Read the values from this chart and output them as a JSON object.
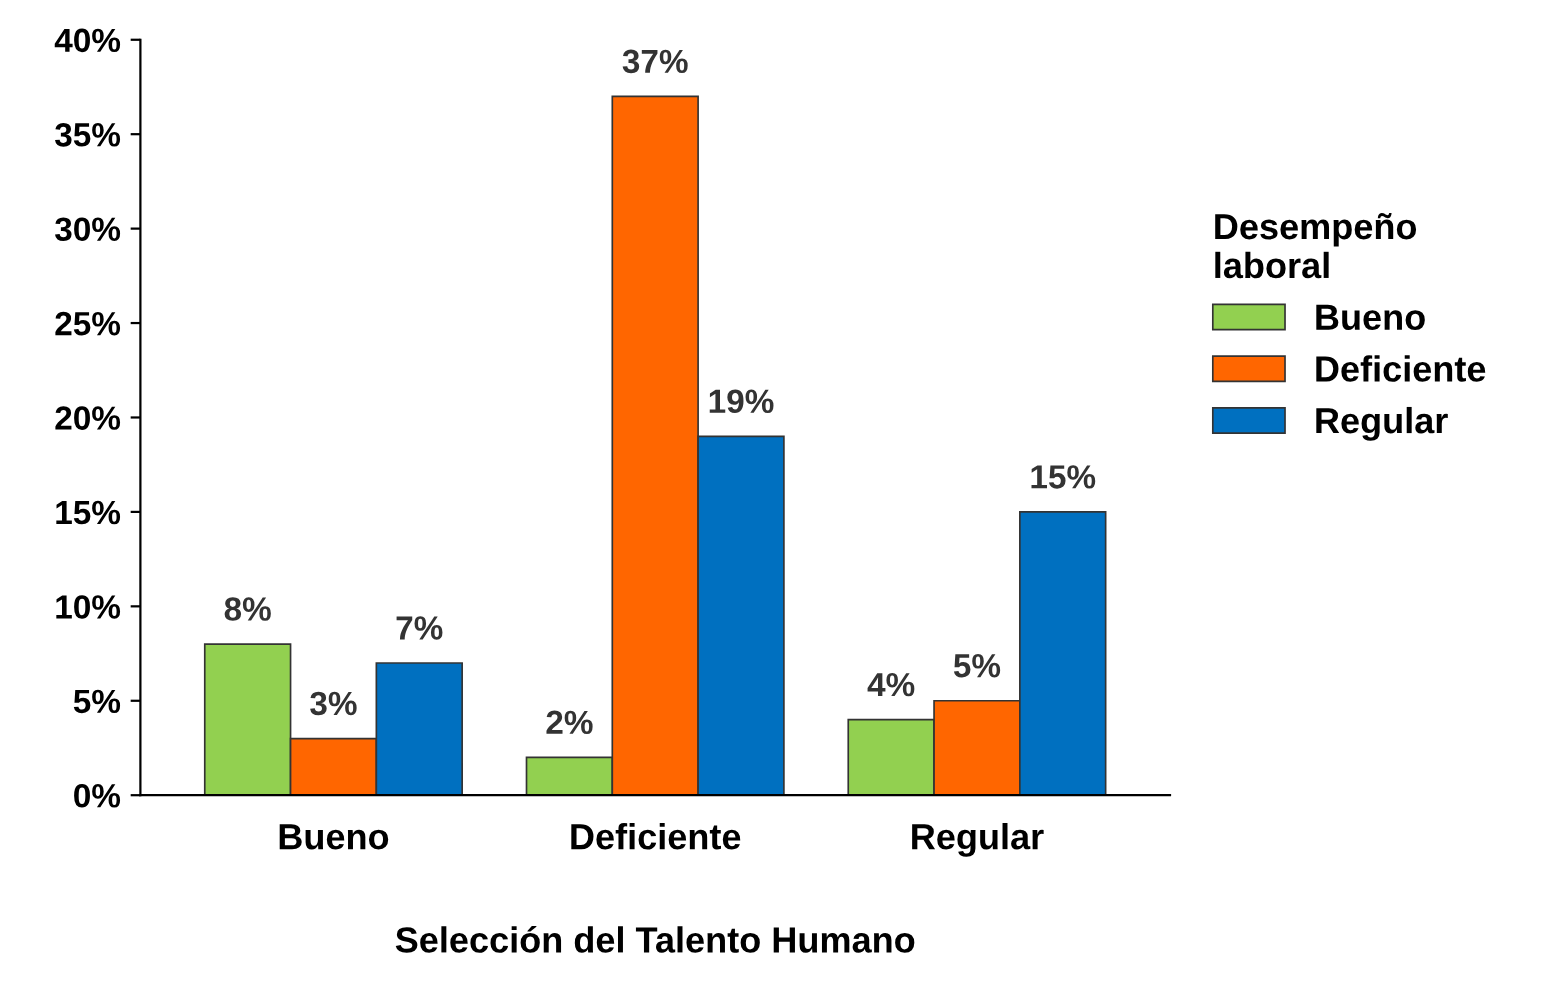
{
  "chart_data": {
    "type": "bar",
    "xlabel": "Selección del Talento Humano",
    "legend_title": "Desempeño\nlaboral",
    "categories": [
      "Bueno",
      "Deficiente",
      "Regular"
    ],
    "series": [
      {
        "name": "Bueno",
        "color": "#92d050",
        "values": [
          8,
          2,
          4
        ],
        "value_labels": [
          "8%",
          "2%",
          "4%"
        ]
      },
      {
        "name": "Deficiente",
        "color": "#ff6600",
        "values": [
          3,
          37,
          5
        ],
        "value_labels": [
          "3%",
          "37%",
          "5%"
        ]
      },
      {
        "name": "Regular",
        "color": "#0070c0",
        "values": [
          7,
          19,
          15
        ],
        "value_labels": [
          "7%",
          "19%",
          "15%"
        ]
      }
    ],
    "ylim": [
      0,
      40
    ],
    "yticks": [
      {
        "value": 0,
        "label": "0%"
      },
      {
        "value": 5,
        "label": "5%"
      },
      {
        "value": 10,
        "label": "10%"
      },
      {
        "value": 15,
        "label": "15%"
      },
      {
        "value": 20,
        "label": "20%"
      },
      {
        "value": 25,
        "label": "25%"
      },
      {
        "value": 30,
        "label": "30%"
      },
      {
        "value": 35,
        "label": "35%"
      },
      {
        "value": 40,
        "label": "40%"
      }
    ],
    "grid": false,
    "legend": "right"
  }
}
